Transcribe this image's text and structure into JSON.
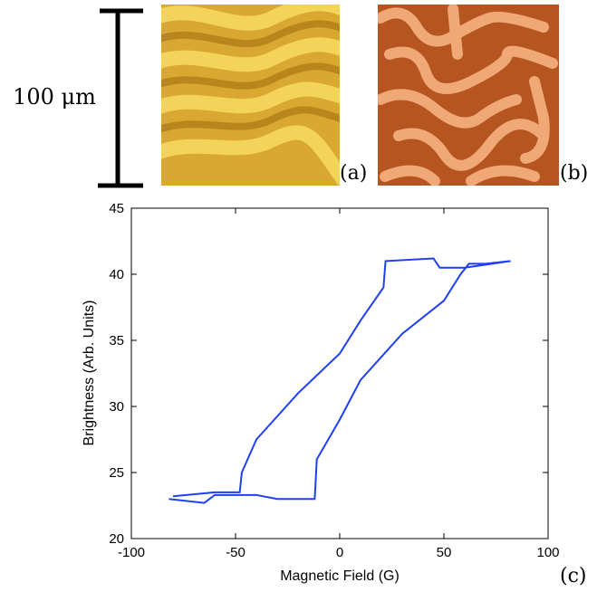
{
  "scale_bar_label": "100 μm",
  "panels": [
    "(a)",
    "(b)",
    "(c)"
  ],
  "chart_data": {
    "type": "line",
    "xlabel": "Magnetic Field (G)",
    "ylabel": "Brightness (Arb. Units)",
    "x": [
      -82,
      -65,
      -60,
      -40,
      -30,
      -12,
      -11,
      0,
      10,
      30,
      50,
      58,
      62,
      70,
      82,
      60,
      48,
      45,
      22,
      21,
      10,
      0,
      -20,
      -40,
      -47,
      -48,
      -60,
      -80
    ],
    "values": [
      23,
      22.7,
      23.3,
      23.3,
      23,
      23,
      26,
      29,
      32,
      35.5,
      38,
      40,
      40.8,
      40.8,
      41,
      40.5,
      40.5,
      41.2,
      41,
      39,
      36.5,
      34,
      31,
      27.5,
      25,
      23.5,
      23.5,
      23.2
    ],
    "color": "#1f3ff5",
    "xlim": [
      -100,
      100
    ],
    "xticks": [
      -100,
      -50,
      0,
      50,
      100
    ],
    "ylim": [
      20,
      45
    ],
    "yticks": [
      20,
      25,
      30,
      35,
      40,
      45
    ]
  }
}
